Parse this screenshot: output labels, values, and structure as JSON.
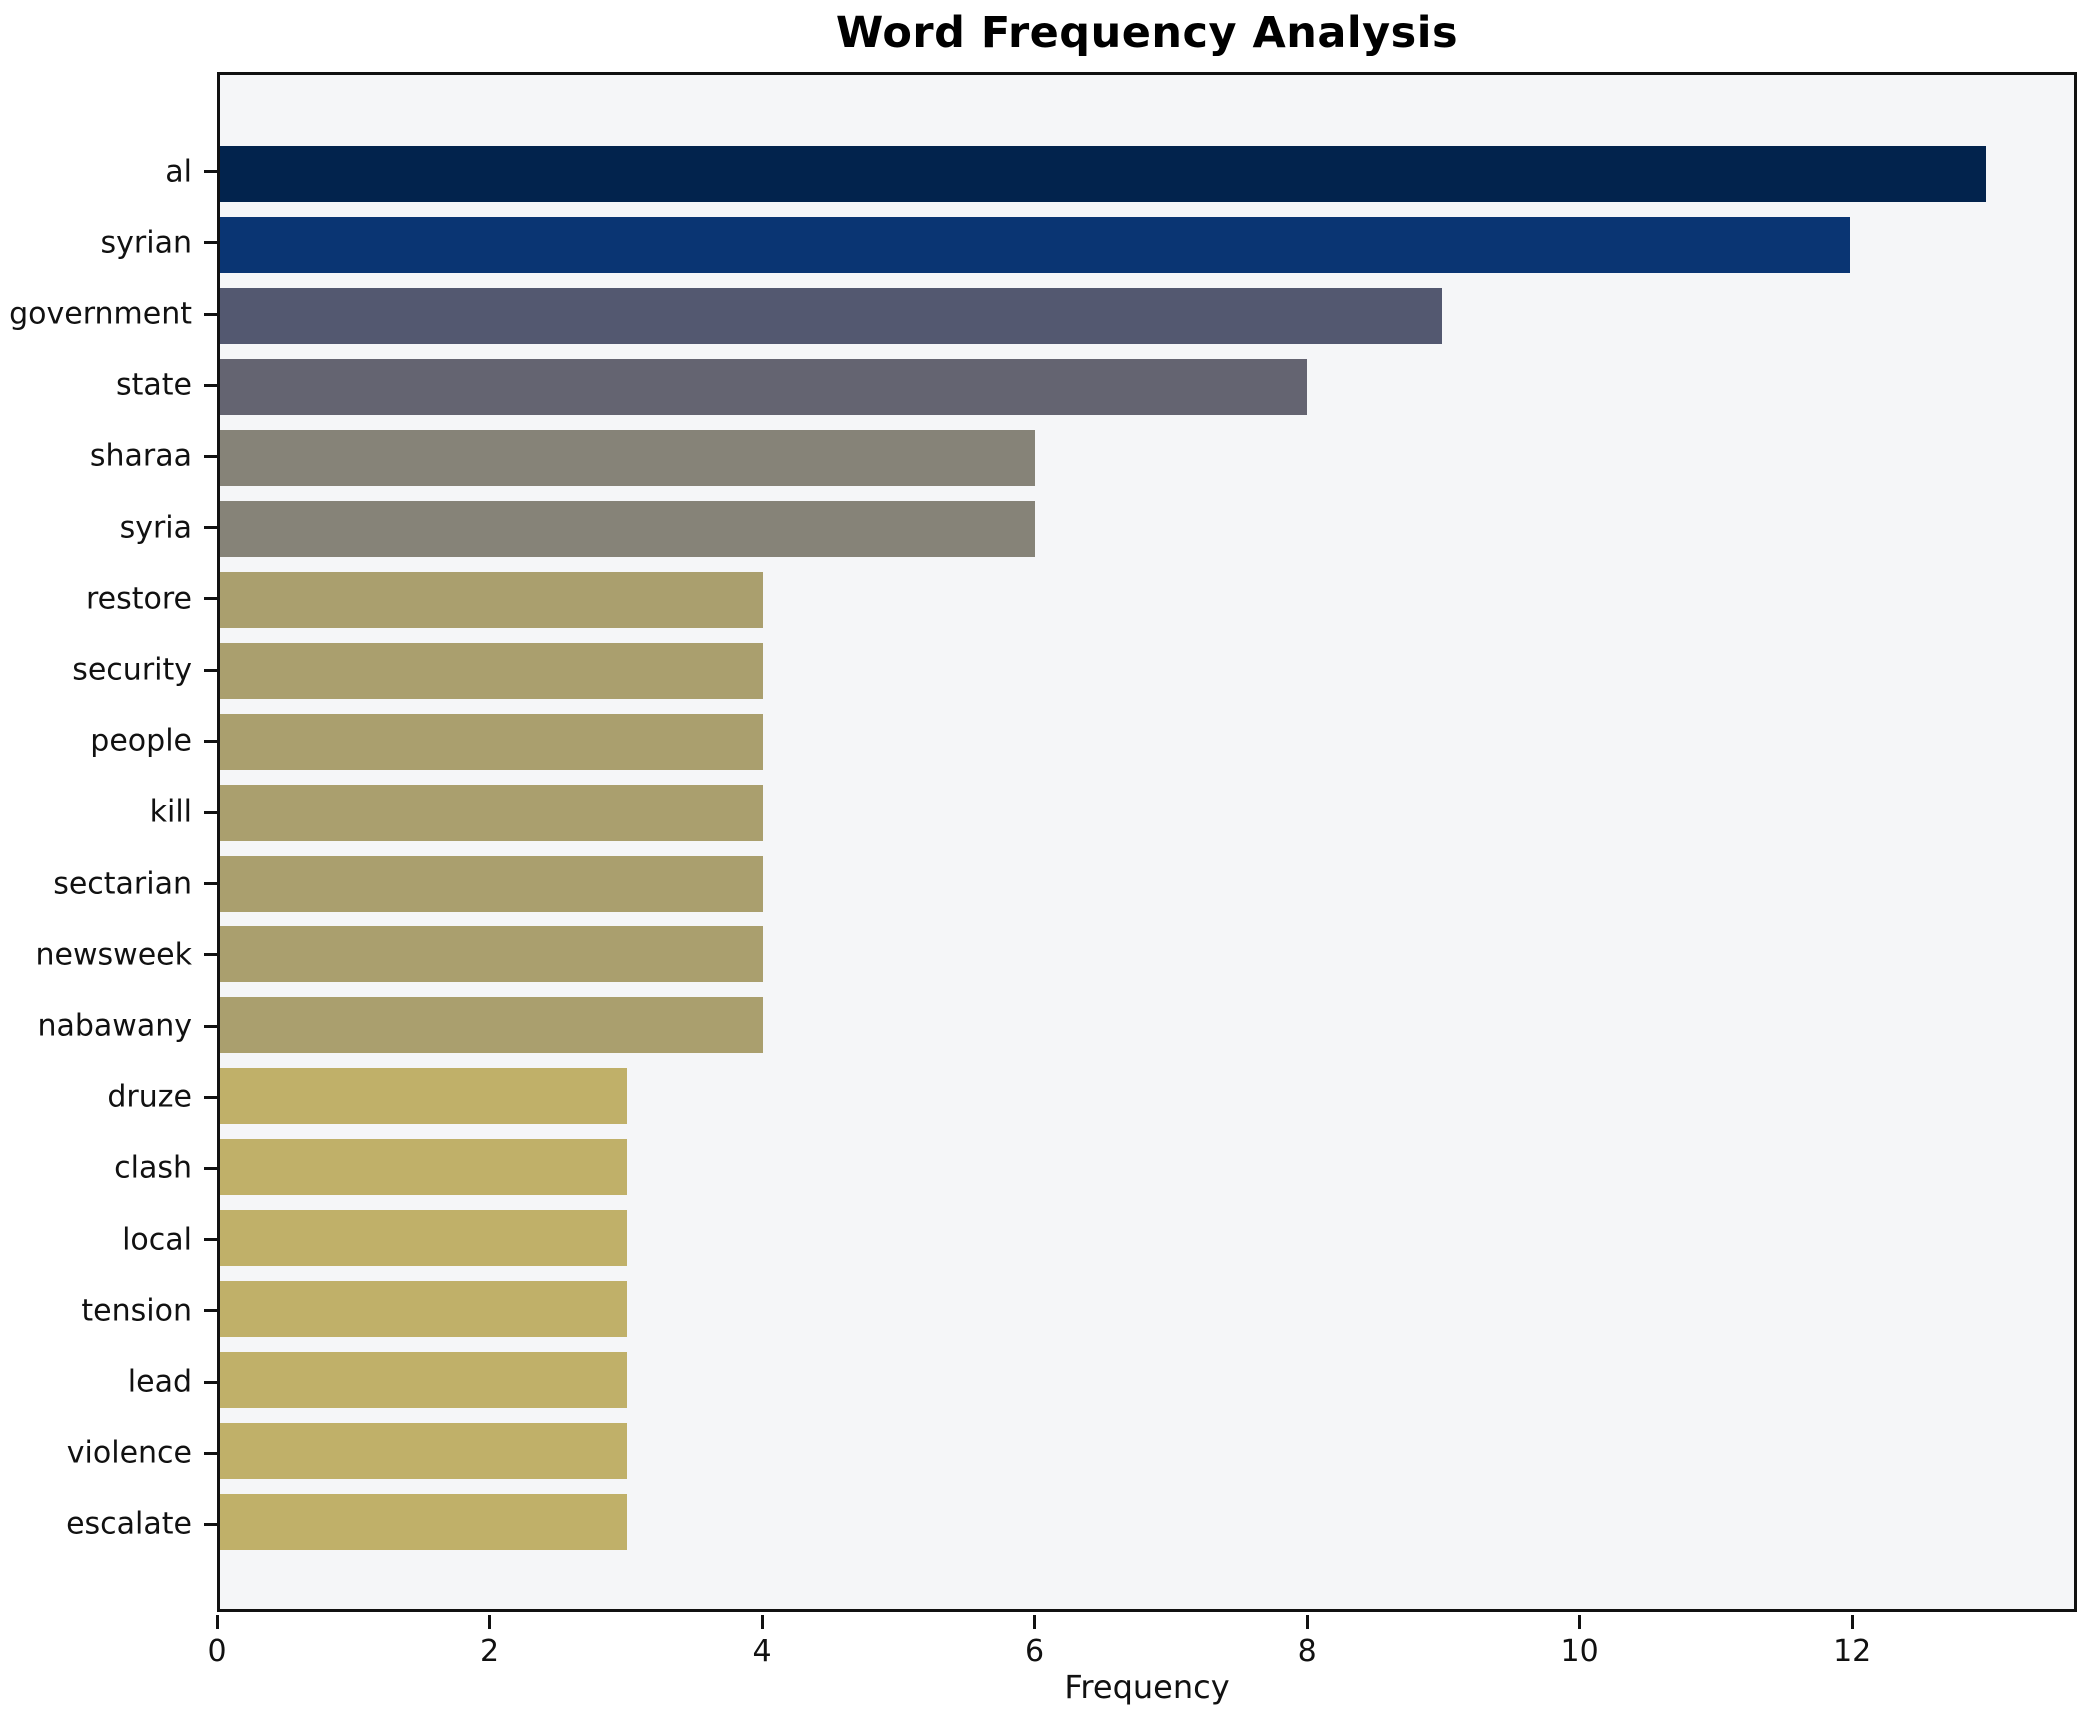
{
  "chart_data": {
    "type": "bar",
    "orientation": "horizontal",
    "title": "Word Frequency Analysis",
    "xlabel": "Frequency",
    "ylabel": "",
    "categories": [
      "al",
      "syrian",
      "government",
      "state",
      "sharaa",
      "syria",
      "restore",
      "security",
      "people",
      "kill",
      "sectarian",
      "newsweek",
      "nabawany",
      "druze",
      "clash",
      "local",
      "tension",
      "lead",
      "violence",
      "escalate"
    ],
    "values": [
      13,
      12,
      9,
      8,
      6,
      6,
      4,
      4,
      4,
      4,
      4,
      4,
      4,
      3,
      3,
      3,
      3,
      3,
      3,
      3
    ],
    "bar_colors": [
      "#02234d",
      "#0a3573",
      "#535870",
      "#646471",
      "#868378",
      "#868378",
      "#aa9f6e",
      "#aa9f6e",
      "#aa9f6e",
      "#aa9f6e",
      "#aa9f6e",
      "#aa9f6e",
      "#aa9f6e",
      "#c0b069",
      "#c0b069",
      "#c0b069",
      "#c0b069",
      "#c0b069",
      "#c0b069",
      "#c0b069"
    ],
    "xlim": [
      0,
      13.65
    ],
    "xticks": [
      0,
      2,
      4,
      6,
      8,
      10,
      12
    ],
    "grid": false,
    "legend": null,
    "plot_background": "#f5f6f8",
    "figure_background": "#ffffff",
    "spine_color": "#111111"
  }
}
